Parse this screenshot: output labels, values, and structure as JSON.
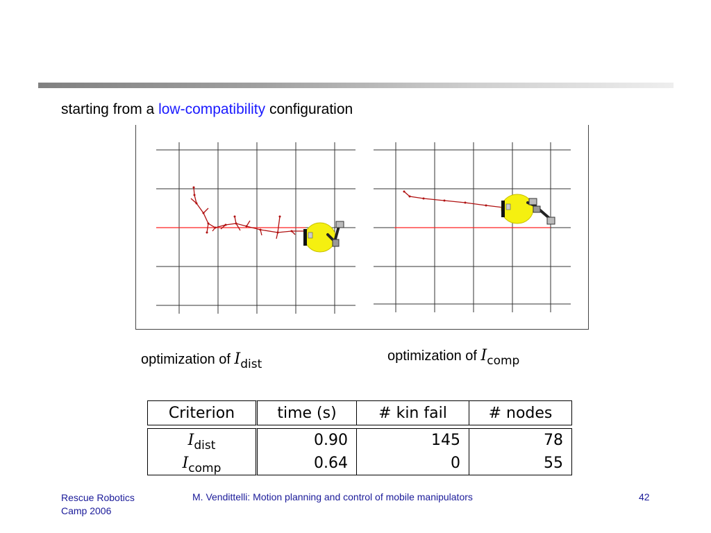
{
  "heading": {
    "prefix": "starting from a",
    "highlight": "low-compatibility",
    "suffix": "configuration"
  },
  "captions": {
    "left": {
      "text": "optimization of",
      "symbol": "I",
      "subscript": "dist"
    },
    "right": {
      "text": "optimization of",
      "symbol": "I",
      "subscript": "comp"
    }
  },
  "table": {
    "headers": [
      "Criterion",
      "time (s)",
      "# kin fail",
      "# nodes"
    ],
    "rows": [
      {
        "symbol": "I",
        "subscript": "dist",
        "time": "0.90",
        "kin_fail": "145",
        "nodes": "78"
      },
      {
        "symbol": "I",
        "subscript": "comp",
        "time": "0.64",
        "kin_fail": "0",
        "nodes": "55"
      }
    ]
  },
  "footer": {
    "left_line1": "Rescue Robotics",
    "left_line2": "Camp 2006",
    "center": "M. Vendittelli: Motion planning and control of mobile manipulators",
    "page": "42"
  },
  "colors": {
    "highlight": "#1a1aff",
    "path": "#b01010",
    "reference_line": "#ff2020",
    "robot_body": "#f5f010",
    "footer_text": "#1a1a99"
  }
}
